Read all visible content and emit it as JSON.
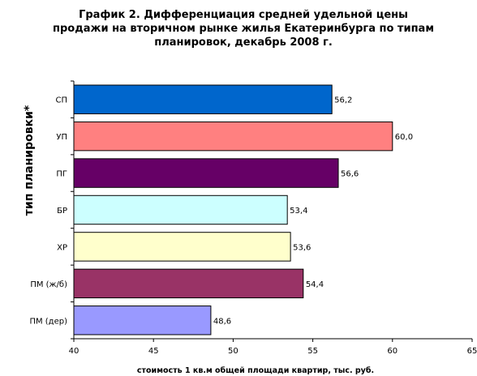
{
  "chart_data": {
    "type": "bar",
    "orientation": "horizontal",
    "title_lines": [
      "График 2.  Дифференциация средней удельной цены",
      "продажи на вторичном рынке жилья Екатеринбурга по типам",
      "планировок, декабрь 2008 г."
    ],
    "xlabel": "стоимость 1 кв.м общей площади квартир, тыс. руб.",
    "ylabel": "тип планировки*",
    "xlim": [
      40,
      65
    ],
    "xticks": [
      "40",
      "45",
      "50",
      "55",
      "60",
      "65"
    ],
    "categories": [
      "СП",
      "УП",
      "ПГ",
      "БР",
      "ХР",
      "ПМ (ж/б)",
      "ПМ (дер)"
    ],
    "values": [
      56.2,
      60.0,
      56.6,
      53.4,
      53.6,
      54.4,
      48.6
    ],
    "value_labels": [
      "56,2",
      "60,0",
      "56,6",
      "53,4",
      "53,6",
      "54,4",
      "48,6"
    ],
    "colors": [
      "#0066CC",
      "#FF8080",
      "#660066",
      "#CCFFFF",
      "#FFFFCC",
      "#993366",
      "#9999FF"
    ],
    "grid": false,
    "legend": "none"
  }
}
